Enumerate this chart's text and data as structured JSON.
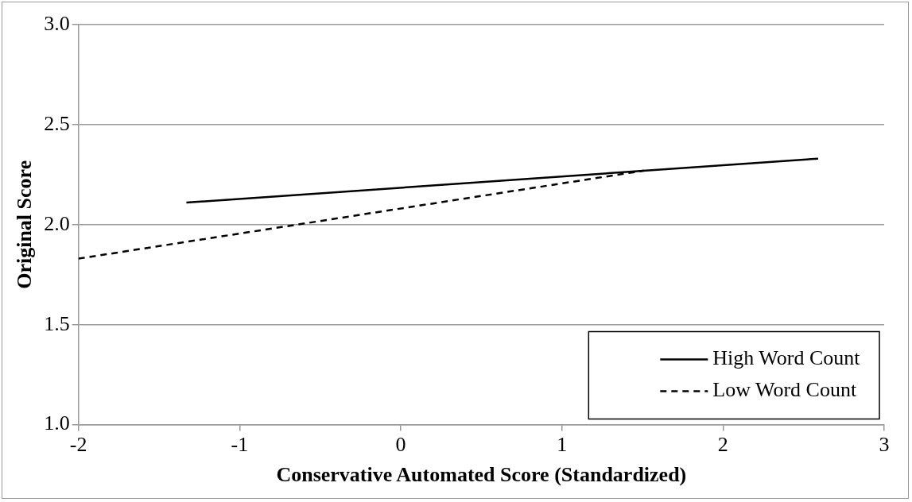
{
  "chart_data": {
    "type": "line",
    "xlabel": "Conservative Automated Score (Standardized)",
    "ylabel": "Original Score",
    "xlim": [
      -2,
      3
    ],
    "xticks": [
      -2,
      -1,
      0,
      1,
      2,
      3
    ],
    "ylim": [
      1,
      3
    ],
    "yticks": [
      {
        "value": 1,
        "label": "1.0"
      },
      {
        "value": 1.5,
        "label": "1.5"
      },
      {
        "value": 2,
        "label": "2.0"
      },
      {
        "value": 2.5,
        "label": "2.5"
      },
      {
        "value": 3,
        "label": "3.0"
      }
    ],
    "grid": "y",
    "legend": "bottom right",
    "marker": "none",
    "series": [
      {
        "name": "High Word Count",
        "color": "#000000",
        "line_style": "solid",
        "x": [
          -1.33,
          2.59
        ],
        "values": [
          2.11,
          2.33
        ]
      },
      {
        "name": "Low Word Count",
        "color": "#000000",
        "line_style": "dashed",
        "x": [
          -2,
          1.51
        ],
        "values": [
          1.83,
          2.27
        ]
      }
    ]
  }
}
